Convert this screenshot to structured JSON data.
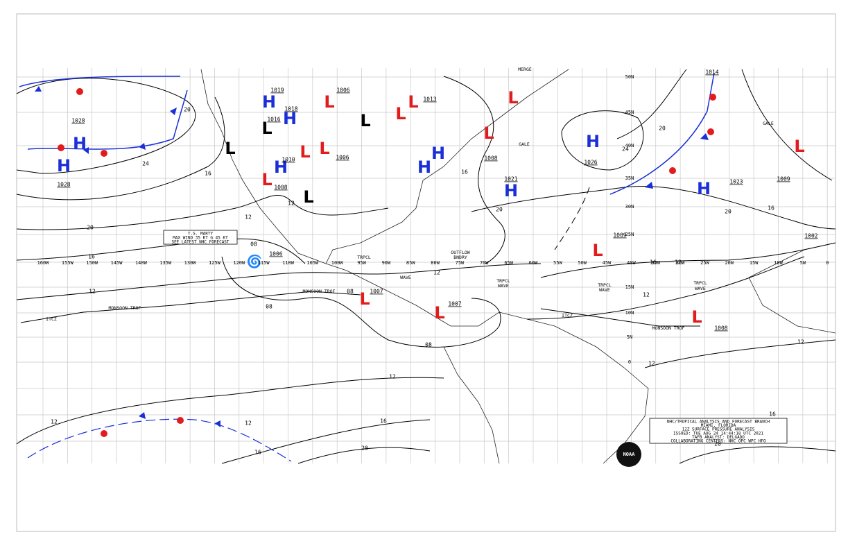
{
  "map": {
    "longitude_labels": [
      "160W",
      "155W",
      "150W",
      "145W",
      "140W",
      "135W",
      "130W",
      "125W",
      "120W",
      "115W",
      "110W",
      "105W",
      "100W",
      "95W",
      "90W",
      "85W",
      "80W",
      "75W",
      "70W",
      "65W",
      "60W",
      "55W",
      "50W",
      "45W",
      "40W",
      "35W",
      "30W",
      "25W",
      "20W",
      "15W",
      "10W",
      "5W",
      "0"
    ],
    "latitude_labels": [
      "50N",
      "45N",
      "40N",
      "35N",
      "30N",
      "25N",
      "15N",
      "10N",
      "5N",
      "0"
    ],
    "systems": [
      {
        "letter": "H"
      },
      {
        "letter": "H"
      },
      {
        "letter": "H"
      },
      {
        "letter": "H"
      },
      {
        "letter": "L"
      },
      {
        "letter": "L"
      },
      {
        "letter": "L"
      },
      {
        "letter": "H"
      },
      {
        "letter": "L"
      },
      {
        "letter": "L"
      },
      {
        "letter": "L"
      },
      {
        "letter": "L"
      },
      {
        "letter": "L"
      },
      {
        "letter": "L"
      },
      {
        "letter": "L"
      },
      {
        "letter": "H"
      },
      {
        "letter": "H"
      },
      {
        "letter": "H"
      },
      {
        "letter": "H"
      },
      {
        "letter": "H"
      },
      {
        "letter": "L"
      },
      {
        "letter": "L"
      },
      {
        "letter": "L"
      },
      {
        "letter": "L"
      },
      {
        "letter": "L"
      },
      {
        "letter": "L"
      },
      {
        "letter": "L"
      }
    ],
    "pressures": [
      "1028",
      "1028",
      "1019",
      "1016",
      "1018",
      "1010",
      "1006",
      "1006",
      "1008",
      "1021",
      "1026",
      "1023",
      "1009",
      "1014",
      "1002",
      "1009",
      "1006",
      "1007",
      "1007",
      "1008",
      "1013",
      "1008"
    ],
    "isobar_labels": [
      "20",
      "24",
      "16",
      "12",
      "20",
      "16",
      "12",
      "12",
      "08",
      "08",
      "08",
      "12",
      "08",
      "12",
      "12",
      "12",
      "16",
      "20",
      "16",
      "20",
      "24",
      "20",
      "20",
      "16",
      "16",
      "12",
      "12",
      "12",
      "16",
      "20",
      "16",
      "12"
    ],
    "feature_labels": [
      "MONSOON TROF",
      "MONSOON TROF",
      "ITCZ",
      "ITCZ",
      "MONSOON TROF",
      "TRPCL",
      "TRPCL",
      "WAVE",
      "TRPCL",
      "WAVE",
      "TRPCL",
      "WAVE",
      "WAVE",
      "OUTFLOW",
      "BNDRY",
      "GALE",
      "GALE",
      "MERGE"
    ],
    "storm_box": [
      "T.S. MARTY",
      "MAX WIND 35 KT G 45 KT",
      "SEE LATEST NHC FORECAST"
    ],
    "info_box": [
      "NHC/TROPICAL ANALYSIS AND FORECAST BRANCH",
      "MIAMI, FLORIDA",
      "12Z SURFACE PRESSURE ANALYSIS",
      "ISSUED: TUE AUG 24 14:44:18 UTC 2021",
      "TAFB ANALYST: DELGADO",
      "COLLABORATING CENTERS: NHC OPC WPC HFO"
    ],
    "logo": "NOAA"
  }
}
